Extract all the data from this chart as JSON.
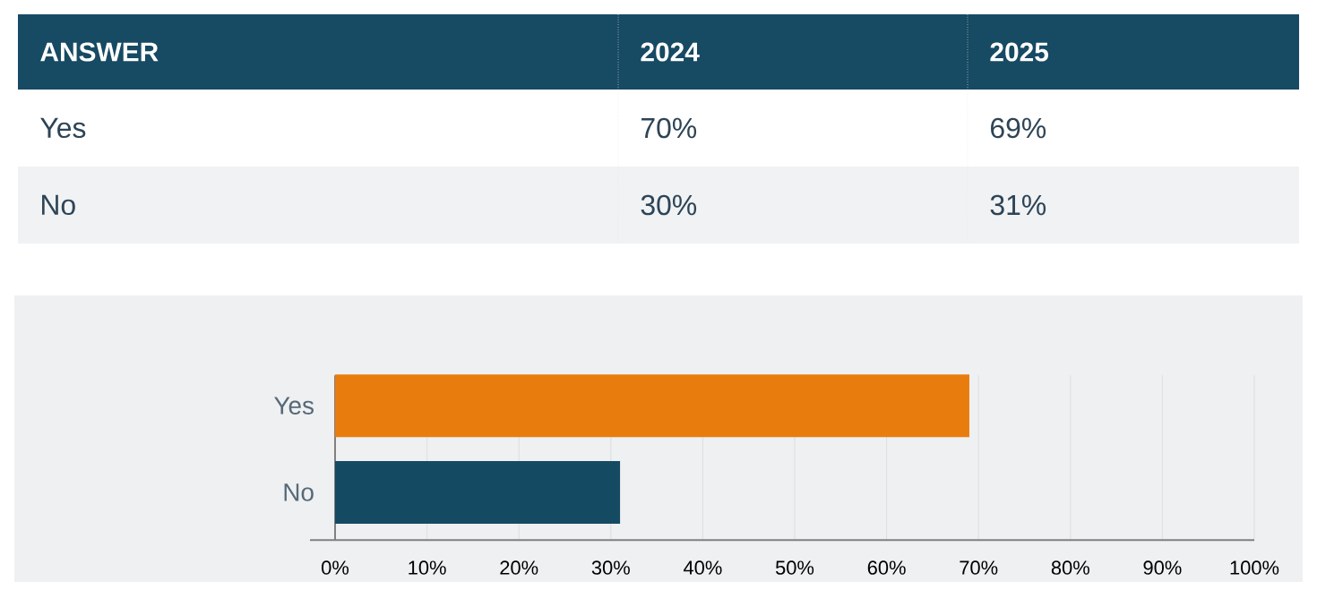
{
  "chart_data": [
    {
      "type": "other",
      "annotations": [
        "ANSWER",
        "2024",
        "2025",
        "Yes",
        "70%",
        "69%",
        "No",
        "30%",
        "31%"
      ]
    },
    {
      "type": "bar",
      "orientation": "horizontal",
      "categories": [
        "Yes",
        "No"
      ],
      "values": [
        69,
        31
      ],
      "colors": [
        "#e87d0e",
        "#154a63"
      ],
      "xlim": [
        0,
        100
      ],
      "xticks": [
        {
          "value": 0,
          "label": "0%"
        },
        {
          "value": 10,
          "label": "10%"
        },
        {
          "value": 20,
          "label": "20%"
        },
        {
          "value": 30,
          "label": "30%"
        },
        {
          "value": 40,
          "label": "40%"
        },
        {
          "value": 50,
          "label": "50%"
        },
        {
          "value": 60,
          "label": "60%"
        },
        {
          "value": 70,
          "label": "70%"
        },
        {
          "value": 80,
          "label": "80%"
        },
        {
          "value": 90,
          "label": "90%"
        },
        {
          "value": 100,
          "label": "100%"
        }
      ],
      "grid": "x"
    }
  ]
}
